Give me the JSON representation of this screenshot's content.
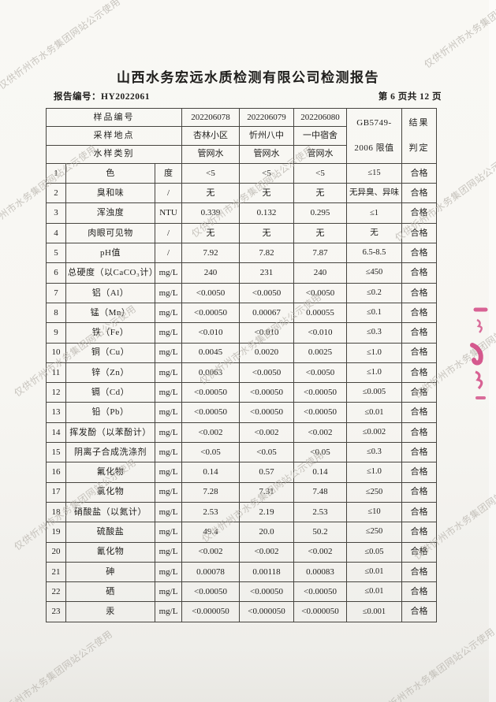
{
  "watermark": {
    "text": "仅供忻州市水务集团网站公示使用"
  },
  "colors": {
    "seal": "#cf3d7c",
    "watermark": "#b7b3ac"
  },
  "header": {
    "title": "山西水务宏远水质检测有限公司检测报告",
    "report_no_label": "报告编号：",
    "report_no": "HY2022061",
    "page_info": "第 6 页共 12 页"
  },
  "table": {
    "head": {
      "sample_id_label": "样品编号",
      "location_label": "采样地点",
      "type_label": "水样类别",
      "limit_line1": "GB5749-",
      "limit_line2": "2006 限值",
      "result_line1": "结果",
      "result_line2": "判定"
    },
    "samples": [
      {
        "id": "202206078",
        "location": "杏林小区",
        "type": "管网水"
      },
      {
        "id": "202206079",
        "location": "忻州八中",
        "type": "管网水"
      },
      {
        "id": "202206080",
        "location": "一中宿舍",
        "type": "管网水"
      }
    ],
    "rows": [
      {
        "no": "1",
        "param": "色",
        "unit": "度",
        "values": [
          "<5",
          "<5",
          "<5"
        ],
        "limit": "≤15",
        "result": "合格"
      },
      {
        "no": "2",
        "param": "臭和味",
        "unit": "/",
        "values": [
          "无",
          "无",
          "无"
        ],
        "limit": "无异臭、异味",
        "result": "合格"
      },
      {
        "no": "3",
        "param": "浑浊度",
        "unit": "NTU",
        "values": [
          "0.339",
          "0.132",
          "0.295"
        ],
        "limit": "≤1",
        "result": "合格"
      },
      {
        "no": "4",
        "param": "肉眼可见物",
        "unit": "/",
        "values": [
          "无",
          "无",
          "无"
        ],
        "limit": "无",
        "result": "合格"
      },
      {
        "no": "5",
        "param": "pH值",
        "unit": "/",
        "values": [
          "7.92",
          "7.82",
          "7.87"
        ],
        "limit": "6.5-8.5",
        "result": "合格"
      },
      {
        "no": "6",
        "param": "总硬度（以CaCO₃计）",
        "unit": "mg/L",
        "values": [
          "240",
          "231",
          "240"
        ],
        "limit": "≤450",
        "result": "合格"
      },
      {
        "no": "7",
        "param": "铝（Al）",
        "unit": "mg/L",
        "values": [
          "<0.0050",
          "<0.0050",
          "<0.0050"
        ],
        "limit": "≤0.2",
        "result": "合格"
      },
      {
        "no": "8",
        "param": "锰（Mn）",
        "unit": "mg/L",
        "values": [
          "<0.00050",
          "0.00067",
          "0.00055"
        ],
        "limit": "≤0.1",
        "result": "合格"
      },
      {
        "no": "9",
        "param": "铁（Fe）",
        "unit": "mg/L",
        "values": [
          "<0.010",
          "<0.010",
          "<0.010"
        ],
        "limit": "≤0.3",
        "result": "合格"
      },
      {
        "no": "10",
        "param": "铜（Cu）",
        "unit": "mg/L",
        "values": [
          "0.0045",
          "0.0020",
          "0.0025"
        ],
        "limit": "≤1.0",
        "result": "合格"
      },
      {
        "no": "11",
        "param": "锌（Zn）",
        "unit": "mg/L",
        "values": [
          "0.0063",
          "<0.0050",
          "<0.0050"
        ],
        "limit": "≤1.0",
        "result": "合格"
      },
      {
        "no": "12",
        "param": "镉（Cd）",
        "unit": "mg/L",
        "values": [
          "<0.00050",
          "<0.00050",
          "<0.00050"
        ],
        "limit": "≤0.005",
        "result": "合格"
      },
      {
        "no": "13",
        "param": "铅（Pb）",
        "unit": "mg/L",
        "values": [
          "<0.00050",
          "<0.00050",
          "<0.00050"
        ],
        "limit": "≤0.01",
        "result": "合格"
      },
      {
        "no": "14",
        "param": "挥发酚（以苯酚计）",
        "unit": "mg/L",
        "values": [
          "<0.002",
          "<0.002",
          "<0.002"
        ],
        "limit": "≤0.002",
        "result": "合格"
      },
      {
        "no": "15",
        "param": "阴离子合成洗涤剂",
        "unit": "mg/L",
        "values": [
          "<0.05",
          "<0.05",
          "<0.05"
        ],
        "limit": "≤0.3",
        "result": "合格"
      },
      {
        "no": "16",
        "param": "氟化物",
        "unit": "mg/L",
        "values": [
          "0.14",
          "0.57",
          "0.14"
        ],
        "limit": "≤1.0",
        "result": "合格"
      },
      {
        "no": "17",
        "param": "氯化物",
        "unit": "mg/L",
        "values": [
          "7.28",
          "7.31",
          "7.48"
        ],
        "limit": "≤250",
        "result": "合格"
      },
      {
        "no": "18",
        "param": "硝酸盐（以氮计）",
        "unit": "mg/L",
        "values": [
          "2.53",
          "2.19",
          "2.53"
        ],
        "limit": "≤10",
        "result": "合格"
      },
      {
        "no": "19",
        "param": "硫酸盐",
        "unit": "mg/L",
        "values": [
          "49.4",
          "20.0",
          "50.2"
        ],
        "limit": "≤250",
        "result": "合格"
      },
      {
        "no": "20",
        "param": "氰化物",
        "unit": "mg/L",
        "values": [
          "<0.002",
          "<0.002",
          "<0.002"
        ],
        "limit": "≤0.05",
        "result": "合格"
      },
      {
        "no": "21",
        "param": "砷",
        "unit": "mg/L",
        "values": [
          "0.00078",
          "0.00118",
          "0.00083"
        ],
        "limit": "≤0.01",
        "result": "合格"
      },
      {
        "no": "22",
        "param": "硒",
        "unit": "mg/L",
        "values": [
          "<0.00050",
          "<0.00050",
          "<0.00050"
        ],
        "limit": "≤0.01",
        "result": "合格"
      },
      {
        "no": "23",
        "param": "汞",
        "unit": "mg/L",
        "values": [
          "<0.000050",
          "<0.000050",
          "<0.000050"
        ],
        "limit": "≤0.001",
        "result": "合格"
      }
    ]
  }
}
